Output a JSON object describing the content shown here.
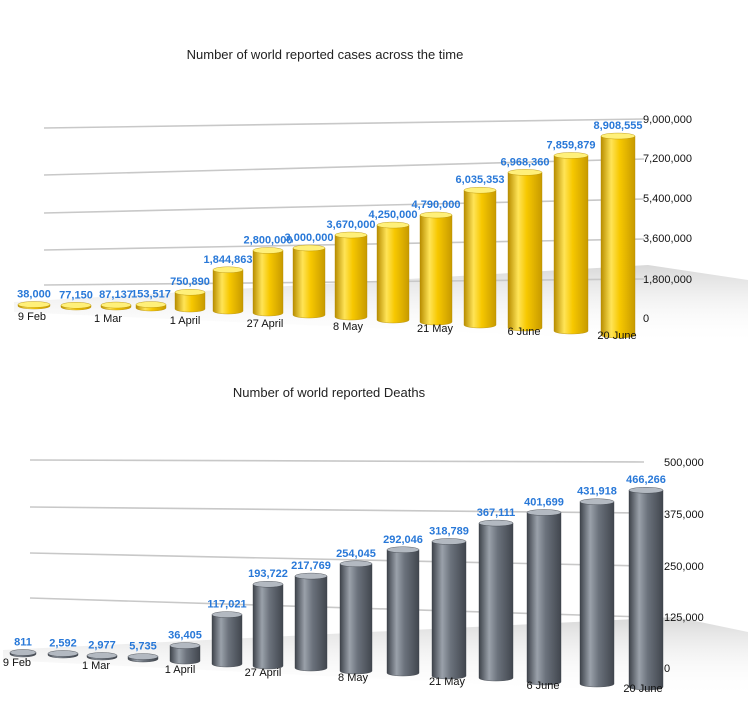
{
  "chart_data": [
    {
      "type": "bar",
      "title": "Number of world reported cases across the time",
      "values": [
        38000,
        77150,
        87137,
        153517,
        750890,
        1844863,
        2800000,
        3000000,
        3670000,
        4250000,
        4790000,
        6035353,
        6968360,
        7859879,
        8908555
      ],
      "value_labels": [
        "38,000",
        "77,150",
        "87,137",
        "153,517",
        "750,890",
        "1,844,863",
        "2,800,000",
        "3,000,000",
        "3,670,000",
        "4,250,000",
        "4,790,000",
        "6,035,353",
        "6,968,360",
        "7,859,879",
        "8,908,555"
      ],
      "x_labels": [
        "9 Feb",
        "1 Mar",
        "1 April",
        "27 April",
        "8 May",
        "21 May",
        "6 June",
        "20 June"
      ],
      "y_ticks": [
        "0",
        "1,800,000",
        "3,600,000",
        "5,400,000",
        "7,200,000",
        "9,000,000"
      ],
      "ylim": [
        0,
        9000000
      ],
      "grid": true,
      "color": "#f2c200"
    },
    {
      "type": "bar",
      "title": "Number of world reported Deaths",
      "values": [
        811,
        2592,
        2977,
        5735,
        36405,
        117021,
        193722,
        217769,
        254045,
        292046,
        318789,
        367111,
        401699,
        431918,
        466266
      ],
      "value_labels": [
        "811",
        "2,592",
        "2,977",
        "5,735",
        "36,405",
        "117,021",
        "193,722",
        "217,769",
        "254,045",
        "292,046",
        "318,789",
        "367,111",
        "401,699",
        "431,918",
        "466,266"
      ],
      "x_labels": [
        "9 Feb",
        "1 Mar",
        "1 April",
        "27 April",
        "8 May",
        "21 May",
        "6 June",
        "20 June"
      ],
      "y_ticks": [
        "0",
        "125,000",
        "250,000",
        "375,000",
        "500,000"
      ],
      "ylim": [
        0,
        500000
      ],
      "grid": true,
      "color": "#5f6670"
    }
  ]
}
